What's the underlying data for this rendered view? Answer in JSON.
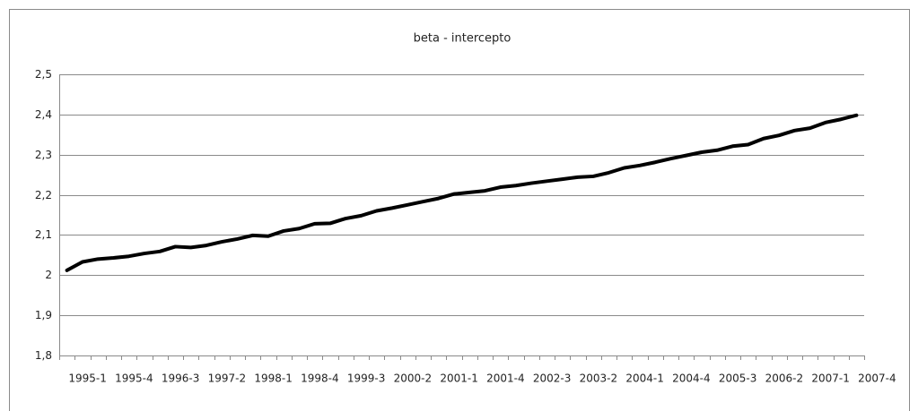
{
  "chart_data": {
    "type": "line",
    "title": "beta - intercepto",
    "categories": [
      "1995-1",
      null,
      null,
      "1995-4",
      null,
      null,
      "1996-3",
      null,
      null,
      "1997-2",
      null,
      null,
      "1998-1",
      null,
      null,
      "1998-4",
      null,
      null,
      "1999-3",
      null,
      null,
      "2000-2",
      null,
      null,
      "2001-1",
      null,
      null,
      "2001-4",
      null,
      null,
      "2002-3",
      null,
      null,
      "2003-2",
      null,
      null,
      "2004-1",
      null,
      null,
      "2004-4",
      null,
      null,
      "2005-3",
      null,
      null,
      "2006-2",
      null,
      null,
      "2007-1",
      null,
      null,
      "2007-4"
    ],
    "values": [
      2.012,
      2.033,
      2.04,
      2.043,
      2.047,
      2.054,
      2.059,
      2.071,
      2.069,
      2.074,
      2.083,
      2.09,
      2.099,
      2.097,
      2.11,
      2.116,
      2.128,
      2.129,
      2.141,
      2.148,
      2.16,
      2.167,
      2.175,
      2.183,
      2.191,
      2.202,
      2.206,
      2.21,
      2.219,
      2.223,
      2.229,
      2.234,
      2.239,
      2.244,
      2.246,
      2.255,
      2.267,
      2.273,
      2.281,
      2.29,
      2.298,
      2.306,
      2.311,
      2.321,
      2.325,
      2.34,
      2.348,
      2.36,
      2.366,
      2.38,
      2.388,
      2.398
    ],
    "color": "#000000",
    "ylim": [
      1.8,
      2.5
    ],
    "yticks": [
      {
        "value": 1.8,
        "label": "1,8"
      },
      {
        "value": 1.9,
        "label": "1,9"
      },
      2,
      {
        "value": 2.1,
        "label": "2,1"
      },
      {
        "value": 2.2,
        "label": "2,2"
      },
      {
        "value": 2.3,
        "label": "2,3"
      },
      {
        "value": 2.4,
        "label": "2,4"
      },
      {
        "value": 2.5,
        "label": "2,5"
      }
    ],
    "grid": true
  }
}
